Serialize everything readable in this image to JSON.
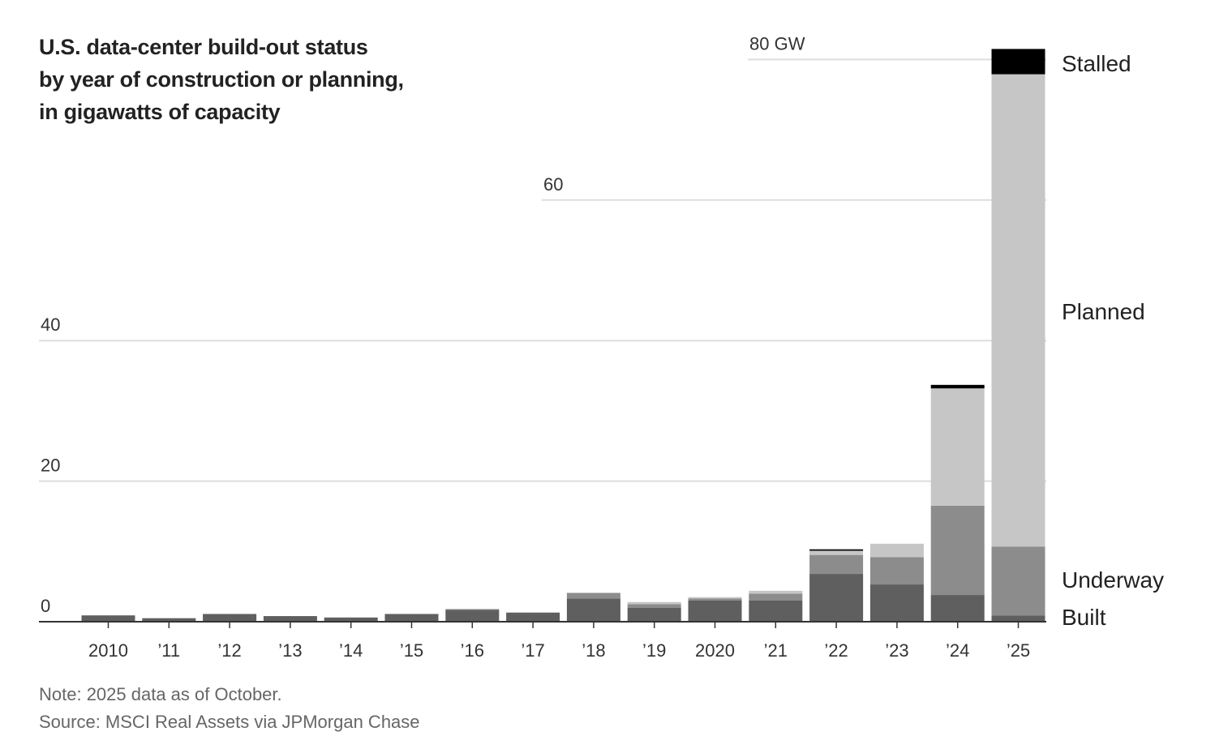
{
  "title_lines": [
    "U.S. data-center build-out status",
    "by year of construction or planning,",
    "in gigawatts of capacity"
  ],
  "note": "Note: 2025 data as of October.",
  "source": "Source: MSCI Real Assets via JPMorgan Chase",
  "colors": {
    "Built": "#5f5f5f",
    "Underway": "#8c8c8c",
    "Planned": "#c6c6c6",
    "Stalled": "#000000",
    "grid": "#dddddd",
    "axis": "#333333"
  },
  "chart_data": {
    "type": "bar",
    "stacked": true,
    "categories": [
      "2010",
      "’11",
      "’12",
      "’13",
      "’14",
      "’15",
      "’16",
      "’17",
      "’18",
      "’19",
      "2020",
      "’21",
      "’22",
      "’23",
      "’24",
      "’25"
    ],
    "series": [
      {
        "name": "Built",
        "values": [
          0.9,
          0.5,
          1.1,
          0.8,
          0.6,
          1.1,
          1.7,
          1.3,
          3.3,
          2.0,
          3.0,
          3.0,
          6.8,
          5.3,
          3.8,
          0.9
        ]
      },
      {
        "name": "Underway",
        "values": [
          0,
          0,
          0,
          0,
          0,
          0,
          0.1,
          0,
          0.8,
          0.5,
          0.3,
          1.0,
          2.7,
          3.9,
          12.7,
          9.8
        ]
      },
      {
        "name": "Planned",
        "values": [
          0,
          0,
          0,
          0,
          0,
          0,
          0,
          0,
          0,
          0.3,
          0.2,
          0.4,
          0.6,
          1.9,
          16.7,
          67.2
        ]
      },
      {
        "name": "Stalled",
        "values": [
          0,
          0,
          0,
          0,
          0,
          0,
          0,
          0,
          0,
          0,
          0,
          0,
          0.2,
          0,
          0.5,
          3.6
        ]
      }
    ],
    "series_labels": [
      "Built",
      "Underway",
      "Planned",
      "Stalled"
    ],
    "yticks": [
      {
        "value": 0,
        "label": "0"
      },
      {
        "value": 20,
        "label": "20"
      },
      {
        "value": 40,
        "label": "40"
      },
      {
        "value": 60,
        "label": "60"
      },
      {
        "value": 80,
        "label": "80 GW"
      }
    ],
    "ylim": [
      0,
      82
    ],
    "grid": true,
    "legend": "right, direct labels"
  }
}
